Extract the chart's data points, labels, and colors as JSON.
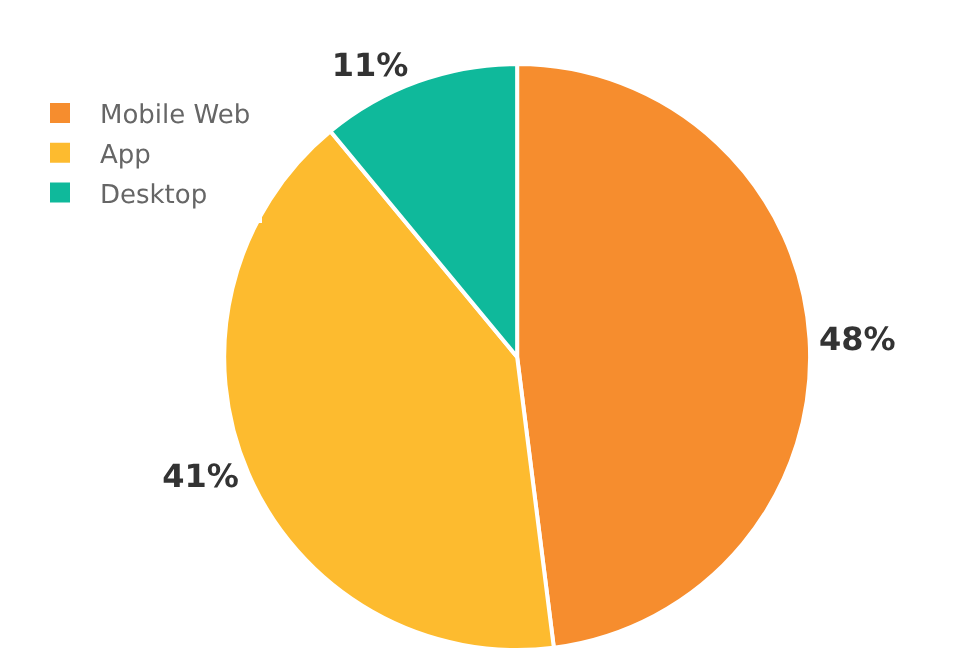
{
  "chart_data": {
    "type": "pie",
    "categories": [
      "Mobile Web",
      "App",
      "Desktop"
    ],
    "values": [
      48,
      41,
      11
    ],
    "colors": [
      "#f68d2e",
      "#fdbb2f",
      "#0fb99b"
    ],
    "value_labels": [
      "48%",
      "41%",
      "11%"
    ],
    "legend": "top left"
  }
}
